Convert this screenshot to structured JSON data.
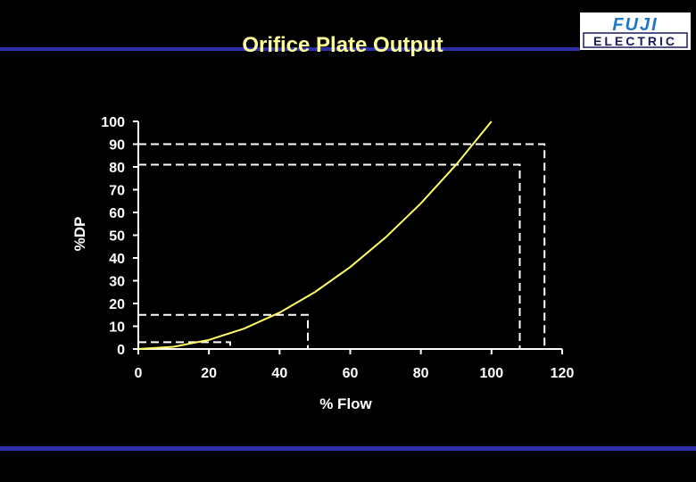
{
  "slide": {
    "title": "Orifice Plate Output",
    "logo": {
      "alt_icon": "fuji-electric-logo",
      "top_text": "FUJI",
      "bottom_text": "ELECTRIC",
      "top_color": "#1f77c8",
      "bottom_color": "#1a1a60"
    },
    "accent_bar_color": "#2e2ea8"
  },
  "chart_data": {
    "type": "line",
    "title": "",
    "xlabel": "% Flow",
    "ylabel": "%DP",
    "xlim": [
      0,
      120
    ],
    "ylim": [
      0,
      100
    ],
    "xticks": [
      0,
      20,
      40,
      60,
      80,
      100,
      120
    ],
    "yticks": [
      0,
      10,
      20,
      30,
      40,
      50,
      60,
      70,
      80,
      90,
      100
    ],
    "grid": false,
    "legend": "none",
    "series": [
      {
        "color": "#ffff66",
        "x": [
          0,
          10,
          20,
          30,
          40,
          50,
          60,
          70,
          80,
          90,
          100
        ],
        "y": [
          0,
          1,
          4,
          9,
          16,
          25,
          36,
          49,
          64,
          81,
          100
        ]
      }
    ],
    "reference_lines": [
      {
        "y": 90,
        "x": 115
      },
      {
        "y": 81,
        "x": 108
      },
      {
        "y": 15,
        "x": 48
      },
      {
        "y": 3,
        "x": 26
      }
    ]
  }
}
